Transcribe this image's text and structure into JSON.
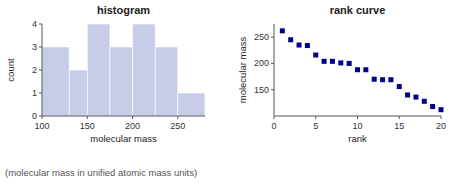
{
  "chart_data": [
    {
      "type": "histogram",
      "title": "histogram",
      "x_label": "molecular mass",
      "y_label": "count",
      "bins": [
        100,
        130,
        150,
        175,
        200,
        225,
        250,
        280
      ],
      "values": [
        3,
        2,
        4,
        3,
        4,
        3,
        1
      ],
      "color": "#c8cce8",
      "xlim": [
        100,
        280
      ],
      "ylim": [
        0,
        4
      ],
      "xticks": [
        100,
        150,
        200,
        250
      ],
      "yticks": [
        0,
        1,
        2,
        3,
        4
      ],
      "grid": false
    },
    {
      "type": "scatter",
      "title": "rank curve",
      "x_label": "rank",
      "y_label": "molecular mass",
      "x": [
        1,
        2,
        3,
        4,
        5,
        6,
        7,
        8,
        9,
        10,
        11,
        12,
        13,
        14,
        15,
        16,
        17,
        18,
        19,
        20
      ],
      "values": [
        262,
        245,
        235,
        234,
        216,
        204,
        204,
        201,
        200,
        188,
        188,
        170,
        169,
        169,
        156,
        140,
        136,
        128,
        118,
        112
      ],
      "color": "#00008b",
      "marker": "square",
      "xlim": [
        0,
        20
      ],
      "ylim": [
        100,
        275
      ],
      "xticks": [
        0,
        5,
        10,
        15,
        20
      ],
      "yticks": [
        150,
        200,
        250
      ],
      "grid": false
    }
  ],
  "caption": "(molecular mass in unified atomic mass units)"
}
